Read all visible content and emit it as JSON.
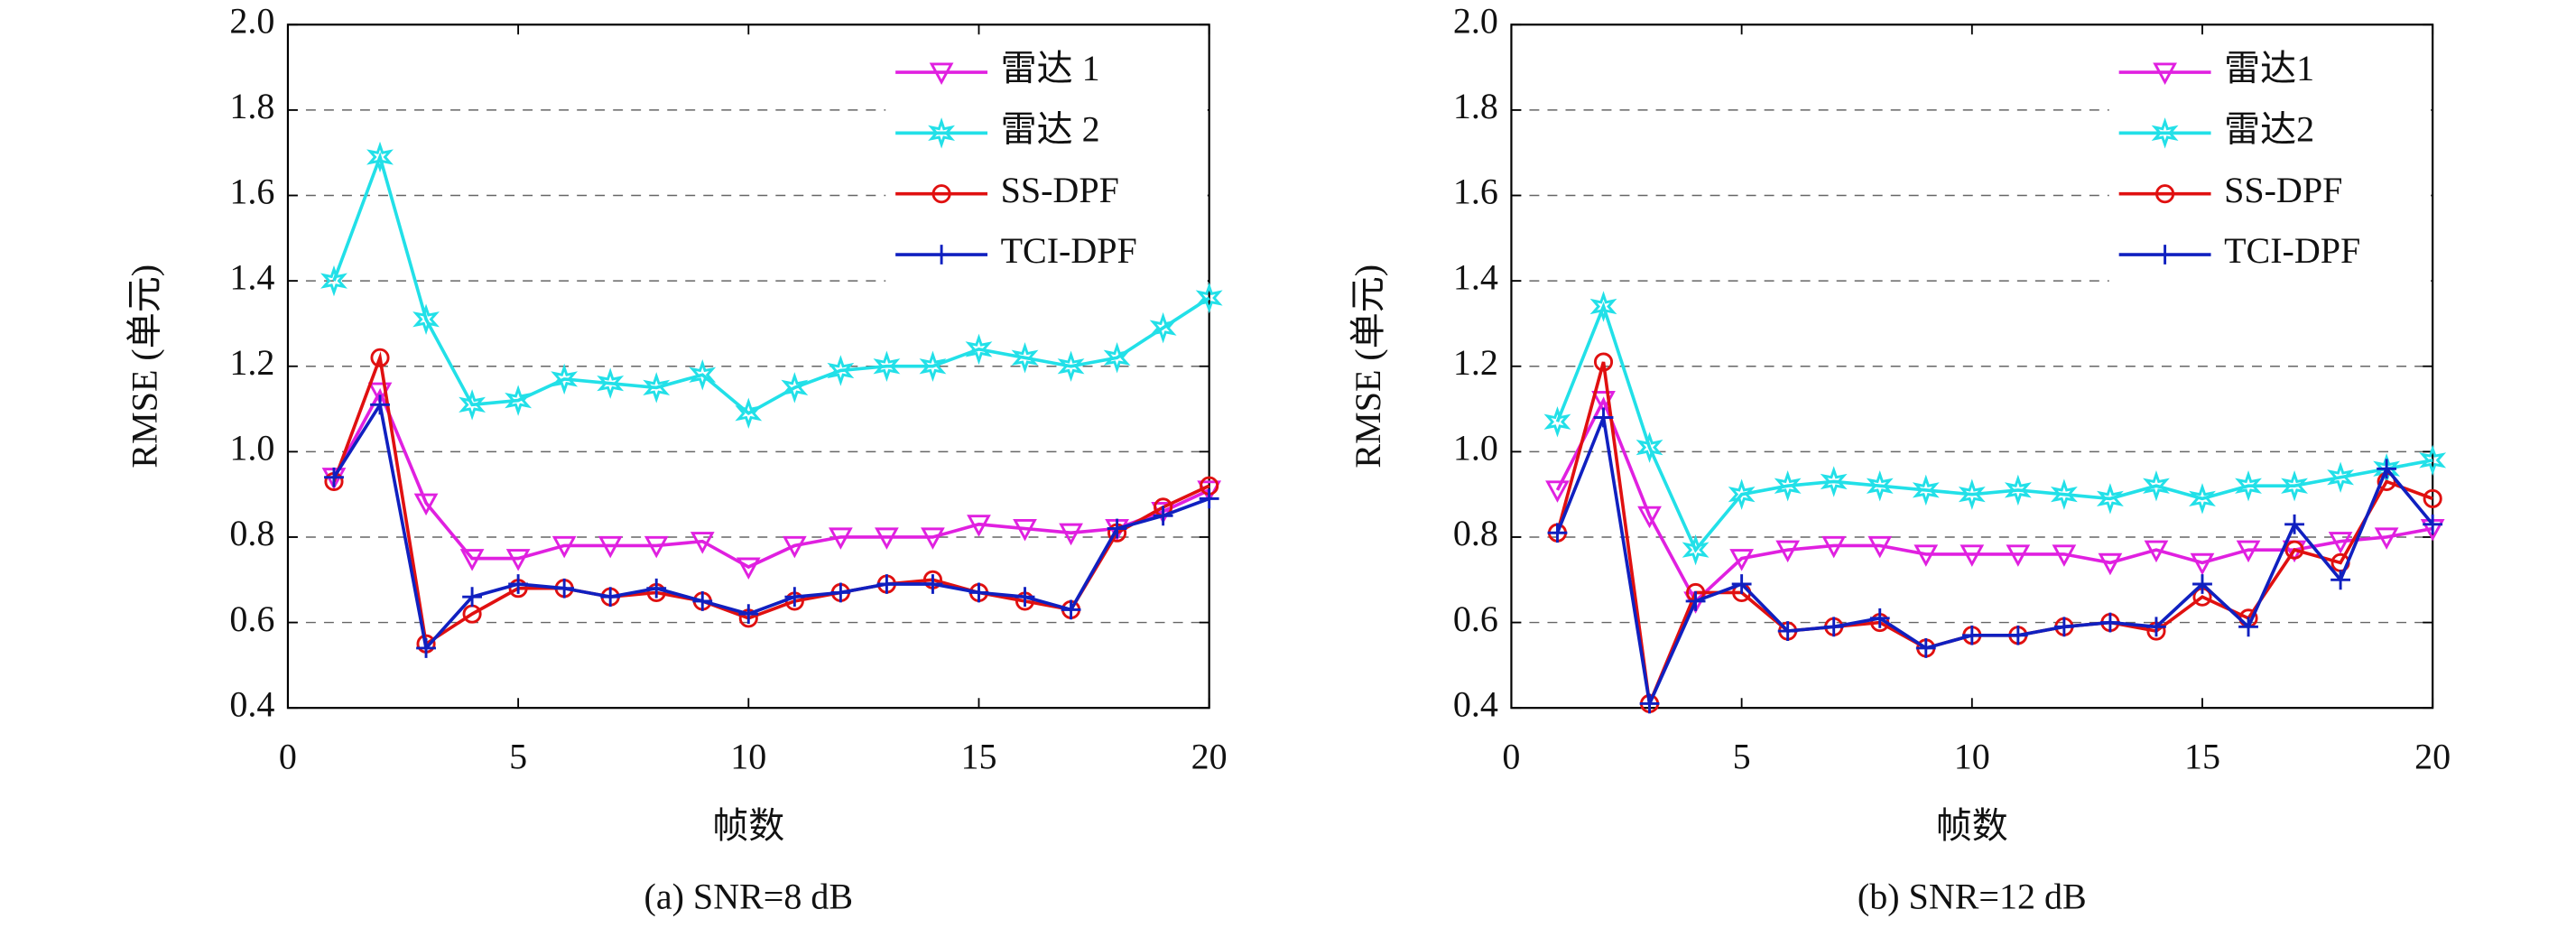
{
  "chart_data": [
    {
      "type": "line",
      "caption": "(a) SNR=8 dB",
      "xlabel": "帧数",
      "ylabel": "RMSE (单元)",
      "x": [
        1,
        2,
        3,
        4,
        5,
        6,
        7,
        8,
        9,
        10,
        11,
        12,
        13,
        14,
        15,
        16,
        17,
        18,
        19,
        20
      ],
      "xlim": [
        0,
        20
      ],
      "xticks": [
        0,
        5,
        10,
        15,
        20
      ],
      "ylim": [
        0.4,
        2.0
      ],
      "yticks": [
        0.4,
        0.6,
        0.8,
        {
          "value": 1.0,
          "label": "1.0"
        },
        1.2,
        1.4,
        1.6,
        1.8,
        {
          "value": 2.0,
          "label": "2.0"
        }
      ],
      "grid": true,
      "legend": "upper right",
      "series": [
        {
          "name": "雷达 1",
          "color": "#e020e0",
          "marker": "triangle",
          "values": [
            0.94,
            1.14,
            0.88,
            0.75,
            0.75,
            0.78,
            0.78,
            0.78,
            0.79,
            0.73,
            0.78,
            0.8,
            0.8,
            0.8,
            0.83,
            0.82,
            0.81,
            0.82,
            0.86,
            0.91
          ]
        },
        {
          "name": "雷达 2",
          "color": "#22e0e8",
          "marker": "star",
          "values": [
            1.4,
            1.69,
            1.31,
            1.11,
            1.12,
            1.17,
            1.16,
            1.15,
            1.18,
            1.09,
            1.15,
            1.19,
            1.2,
            1.2,
            1.24,
            1.22,
            1.2,
            1.22,
            1.29,
            1.36
          ]
        },
        {
          "name": "SS-DPF",
          "color": "#e01010",
          "marker": "circle",
          "values": [
            0.93,
            1.22,
            0.55,
            0.62,
            0.68,
            0.68,
            0.66,
            0.67,
            0.65,
            0.61,
            0.65,
            0.67,
            0.69,
            0.7,
            0.67,
            0.65,
            0.63,
            0.81,
            0.87,
            0.92
          ]
        },
        {
          "name": "TCI-DPF",
          "color": "#1020c0",
          "marker": "plus",
          "values": [
            0.94,
            1.11,
            0.54,
            0.66,
            0.69,
            0.68,
            0.66,
            0.68,
            0.65,
            0.62,
            0.66,
            0.67,
            0.69,
            0.69,
            0.67,
            0.66,
            0.63,
            0.82,
            0.85,
            0.89
          ]
        }
      ]
    },
    {
      "type": "line",
      "caption": "(b) SNR=12 dB",
      "xlabel": "帧数",
      "ylabel": "RMSE (单元)",
      "x": [
        1,
        2,
        3,
        4,
        5,
        6,
        7,
        8,
        9,
        10,
        11,
        12,
        13,
        14,
        15,
        16,
        17,
        18,
        19,
        20
      ],
      "xlim": [
        0,
        20
      ],
      "xticks": [
        0,
        5,
        10,
        15,
        20
      ],
      "ylim": [
        0.4,
        2.0
      ],
      "yticks": [
        0.4,
        0.6,
        0.8,
        {
          "value": 1.0,
          "label": "1.0"
        },
        1.2,
        1.4,
        1.6,
        1.8,
        {
          "value": 2.0,
          "label": "2.0"
        }
      ],
      "grid": true,
      "legend": "upper right",
      "series": [
        {
          "name": "雷达1",
          "color": "#e020e0",
          "marker": "triangle",
          "values": [
            0.91,
            1.12,
            0.85,
            0.65,
            0.75,
            0.77,
            0.78,
            0.78,
            0.76,
            0.76,
            0.76,
            0.76,
            0.74,
            0.77,
            0.74,
            0.77,
            0.77,
            0.79,
            0.8,
            0.82
          ]
        },
        {
          "name": "雷达2",
          "color": "#22e0e8",
          "marker": "star",
          "values": [
            1.07,
            1.34,
            1.01,
            0.77,
            0.9,
            0.92,
            0.93,
            0.92,
            0.91,
            0.9,
            0.91,
            0.9,
            0.89,
            0.92,
            0.89,
            0.92,
            0.92,
            0.94,
            0.96,
            0.98
          ]
        },
        {
          "name": "SS-DPF",
          "color": "#e01010",
          "marker": "circle",
          "values": [
            0.81,
            1.21,
            0.41,
            0.67,
            0.67,
            0.58,
            0.59,
            0.6,
            0.54,
            0.57,
            0.57,
            0.59,
            0.6,
            0.58,
            0.66,
            0.61,
            0.77,
            0.74,
            0.93,
            0.89
          ]
        },
        {
          "name": "TCI-DPF",
          "color": "#1020c0",
          "marker": "plus",
          "values": [
            0.81,
            1.08,
            0.41,
            0.65,
            0.69,
            0.58,
            0.59,
            0.61,
            0.54,
            0.57,
            0.57,
            0.59,
            0.6,
            0.59,
            0.69,
            0.59,
            0.83,
            0.7,
            0.96,
            0.83
          ]
        }
      ]
    }
  ]
}
